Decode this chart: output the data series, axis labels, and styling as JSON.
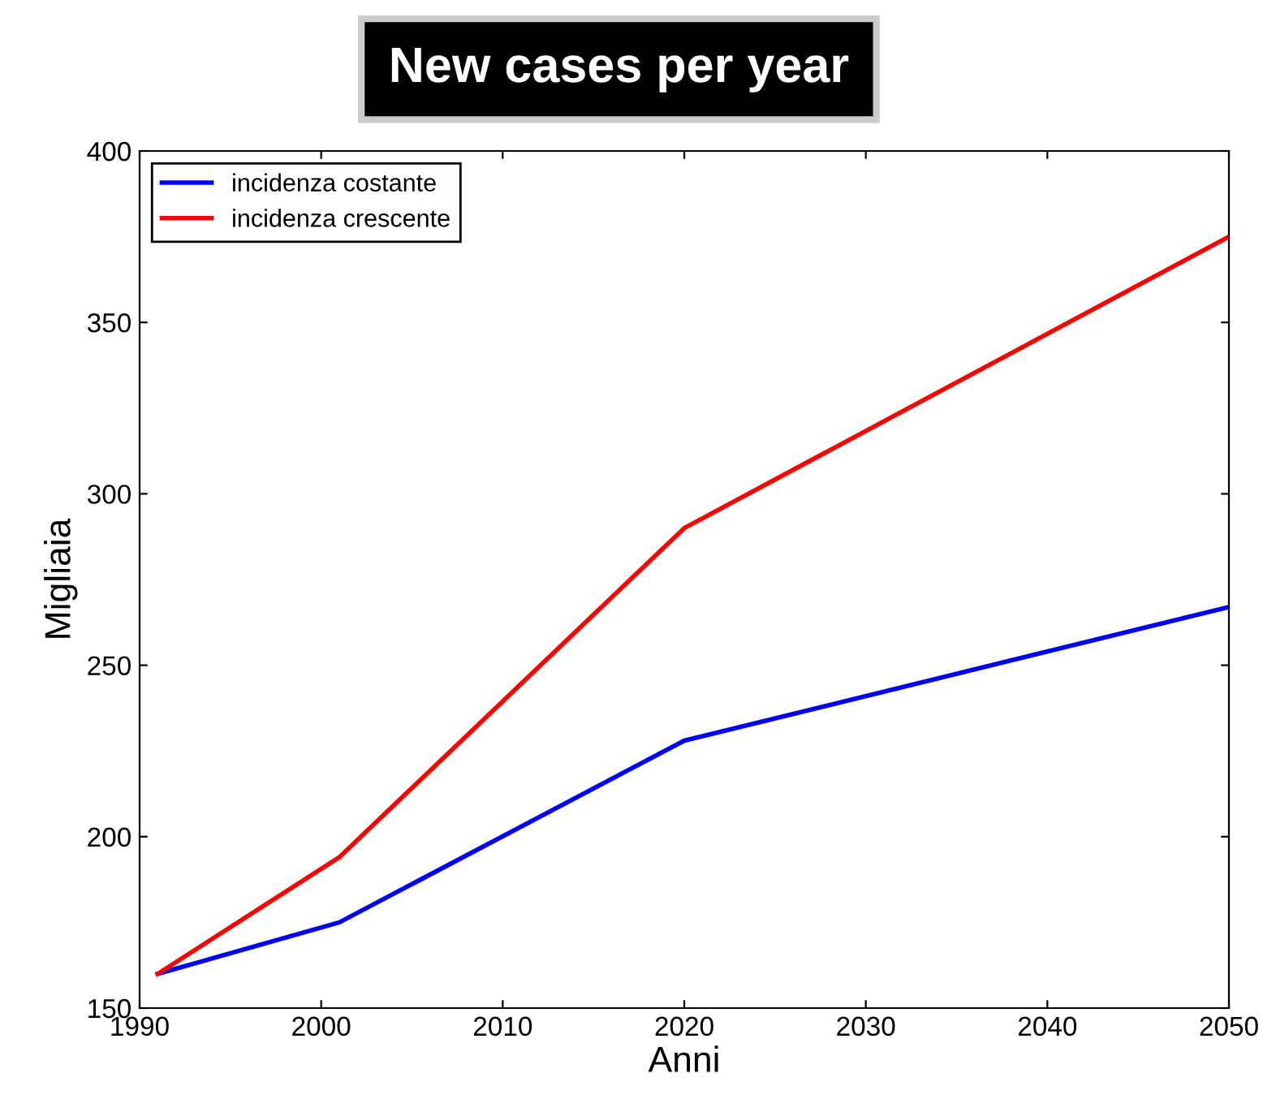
{
  "chart_data": {
    "type": "line",
    "title": "New cases per year",
    "xlabel": "Anni",
    "ylabel": "Migliaia",
    "xlim": [
      1990,
      2050
    ],
    "xticks": [
      1990,
      2000,
      2010,
      2020,
      2030,
      2040,
      2050
    ],
    "ylim": [
      150,
      400
    ],
    "yticks": [
      150,
      200,
      250,
      300,
      350,
      400
    ],
    "grid": false,
    "legend": "top left",
    "marker": "none",
    "line_style": "solid",
    "series": [
      {
        "name": "incidenza costante",
        "color": "#0000ff",
        "x": [
          1991,
          2001,
          2020,
          2050
        ],
        "values": [
          160,
          175,
          228,
          267
        ]
      },
      {
        "name": "incidenza crescente",
        "color": "#ff0000",
        "x": [
          1991,
          2001,
          2020,
          2050
        ],
        "values": [
          160,
          194,
          290,
          375
        ]
      }
    ]
  }
}
